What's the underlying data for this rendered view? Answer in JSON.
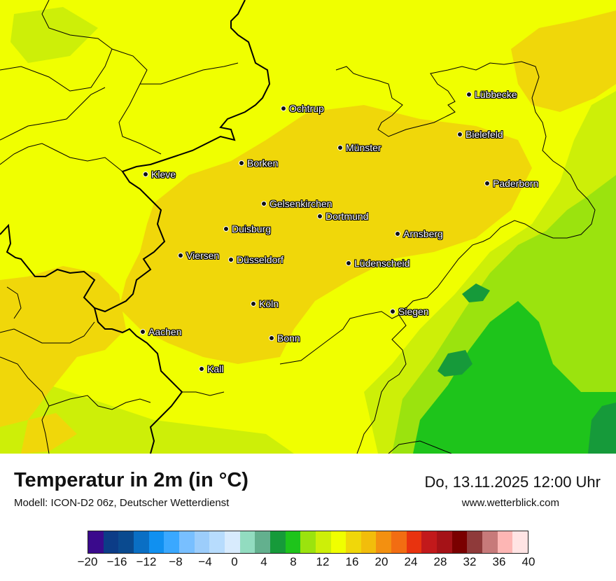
{
  "header": {
    "title": "Temperatur in 2m (in °C)",
    "subtitle": "Modell: ICON-D2 06z, Deutscher Wetterdienst",
    "datetime": "Do, 13.11.2025 12:00 Uhr",
    "website": "www.wetterblick.com"
  },
  "cities": [
    {
      "key": "luebbecke",
      "name": "Lübbecke"
    },
    {
      "key": "ochtrup",
      "name": "Ochtrup"
    },
    {
      "key": "bielefeld",
      "name": "Bielefeld"
    },
    {
      "key": "muenster",
      "name": "Münster"
    },
    {
      "key": "borken",
      "name": "Borken"
    },
    {
      "key": "kleve",
      "name": "Kleve"
    },
    {
      "key": "paderborn",
      "name": "Paderborn"
    },
    {
      "key": "gelsenkirchen",
      "name": "Gelsenkirchen"
    },
    {
      "key": "dortmund",
      "name": "Dortmund"
    },
    {
      "key": "duisburg",
      "name": "Duisburg"
    },
    {
      "key": "arnsberg",
      "name": "Arnsberg"
    },
    {
      "key": "viersen",
      "name": "Viersen"
    },
    {
      "key": "duesseldorf",
      "name": "Düsseldorf"
    },
    {
      "key": "luedenscheid",
      "name": "Lüdenscheid"
    },
    {
      "key": "koeln",
      "name": "Köln"
    },
    {
      "key": "siegen",
      "name": "Siegen"
    },
    {
      "key": "aachen",
      "name": "Aachen"
    },
    {
      "key": "bonn",
      "name": "Bonn"
    },
    {
      "key": "kall",
      "name": "Kall"
    }
  ],
  "legend": {
    "colors": [
      "#3a0a8c",
      "#0c3c87",
      "#0a4a8f",
      "#0a6fc4",
      "#1090f0",
      "#3aa8ff",
      "#78bfff",
      "#9ccdfb",
      "#b7dcfd",
      "#d8ebfd",
      "#92dcc0",
      "#63b08e",
      "#169a3a",
      "#1ec41b",
      "#9be30e",
      "#cdef08",
      "#f0ff00",
      "#f0d70a",
      "#f2bd0b",
      "#f39010",
      "#f26d12",
      "#e8330f",
      "#c2191b",
      "#a51217",
      "#7a0000",
      "#8f3a3a",
      "#c77a7a",
      "#fdb6b4",
      "#ffe4e4"
    ],
    "ticks": [
      "−20",
      "−16",
      "−12",
      "−8",
      "−4",
      "0",
      "4",
      "8",
      "12",
      "16",
      "20",
      "24",
      "28",
      "32",
      "36",
      "40"
    ]
  },
  "map_colors": {
    "yellow": "#f0ff00",
    "orange": "#f0d70a",
    "lime": "#cdef08",
    "green_light": "#9be30e",
    "green": "#1ec41b",
    "green_dark": "#169a3a"
  }
}
